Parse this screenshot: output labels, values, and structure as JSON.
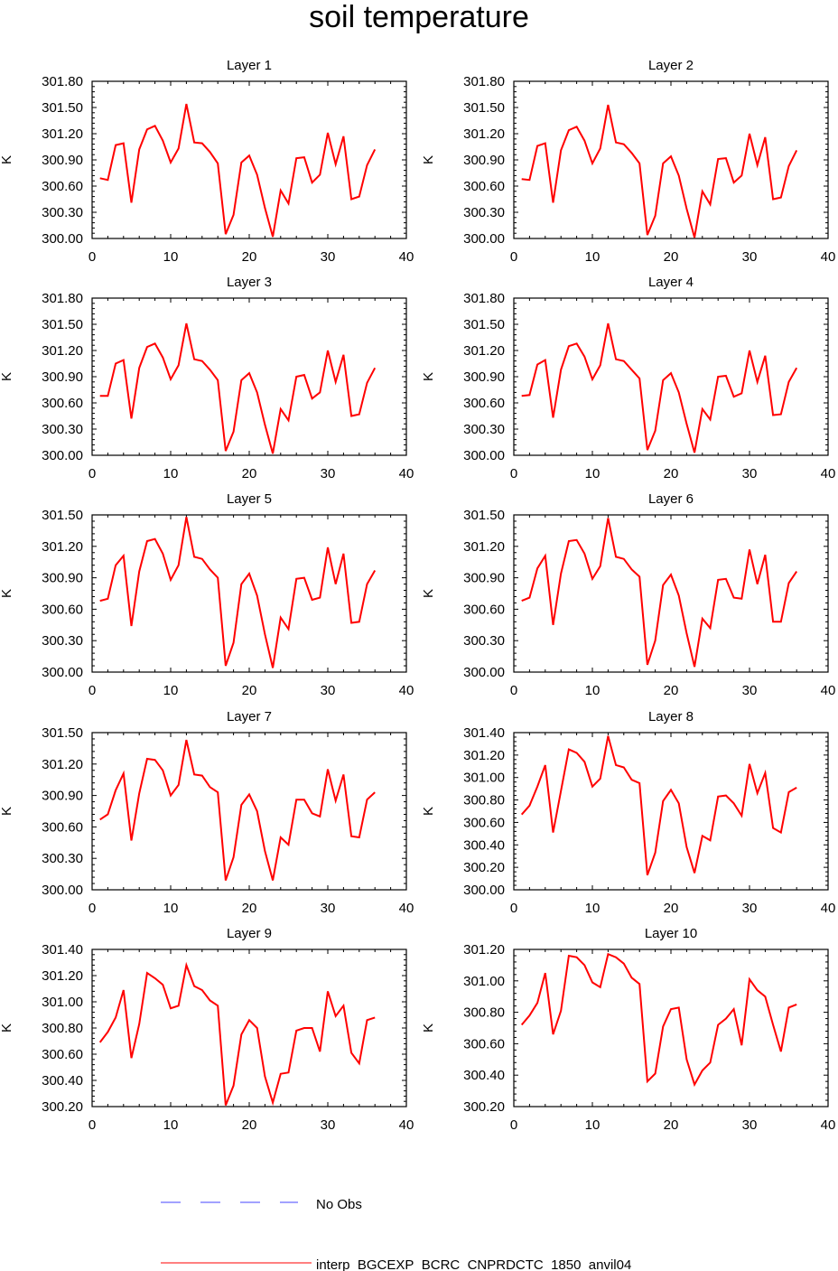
{
  "title": "soil temperature",
  "legend": [
    {
      "label": "No Obs",
      "color": "#4444ff",
      "style": "dashed"
    },
    {
      "label": "interp_BGCEXP_BCRC_CNPRDCTC_1850_anvil04",
      "color": "#ff0000",
      "style": "solid"
    }
  ],
  "chart_data": [
    {
      "type": "line",
      "title": "Layer 1",
      "ylabel": "K",
      "xlim": [
        0,
        40
      ],
      "xticks": [
        0,
        10,
        20,
        30,
        40
      ],
      "ylim": [
        300.0,
        301.8
      ],
      "yticks": [
        "300.00",
        "300.30",
        "300.60",
        "300.90",
        "301.20",
        "301.50",
        "301.80"
      ],
      "series": [
        {
          "name": "interp_BGCEXP_BCRC_CNPRDCTC_1850_anvil04",
          "x": [
            1,
            2,
            3,
            4,
            5,
            6,
            7,
            8,
            9,
            10,
            11,
            12,
            13,
            14,
            15,
            16,
            17,
            18,
            19,
            20,
            21,
            22,
            23,
            24,
            25,
            26,
            27,
            28,
            29,
            30,
            31,
            32,
            33,
            34,
            35,
            36
          ],
          "values": [
            300.69,
            300.67,
            301.07,
            301.09,
            300.41,
            301.02,
            301.25,
            301.29,
            301.12,
            300.87,
            301.03,
            301.54,
            301.1,
            301.09,
            300.99,
            300.86,
            300.05,
            300.27,
            300.87,
            300.95,
            300.73,
            300.35,
            300.02,
            300.55,
            300.4,
            300.92,
            300.93,
            300.64,
            300.73,
            301.21,
            300.85,
            301.17,
            300.45,
            300.48,
            300.84,
            301.02
          ]
        }
      ]
    },
    {
      "type": "line",
      "title": "Layer 2",
      "ylabel": "K",
      "xlim": [
        0,
        40
      ],
      "xticks": [
        0,
        10,
        20,
        30,
        40
      ],
      "ylim": [
        300.0,
        301.8
      ],
      "yticks": [
        "300.00",
        "300.30",
        "300.60",
        "300.90",
        "301.20",
        "301.50",
        "301.80"
      ],
      "series": [
        {
          "name": "interp_BGCEXP_BCRC_CNPRDCTC_1850_anvil04",
          "x": [
            1,
            2,
            3,
            4,
            5,
            6,
            7,
            8,
            9,
            10,
            11,
            12,
            13,
            14,
            15,
            16,
            17,
            18,
            19,
            20,
            21,
            22,
            23,
            24,
            25,
            26,
            27,
            28,
            29,
            30,
            31,
            32,
            33,
            34,
            35,
            36
          ],
          "values": [
            300.68,
            300.67,
            301.06,
            301.09,
            300.41,
            301.01,
            301.24,
            301.28,
            301.12,
            300.86,
            301.03,
            301.53,
            301.1,
            301.08,
            300.98,
            300.86,
            300.04,
            300.26,
            300.86,
            300.94,
            300.72,
            300.34,
            300.01,
            300.54,
            300.39,
            300.91,
            300.92,
            300.64,
            300.72,
            301.2,
            300.84,
            301.16,
            300.45,
            300.47,
            300.83,
            301.01
          ]
        }
      ]
    },
    {
      "type": "line",
      "title": "Layer 3",
      "ylabel": "K",
      "xlim": [
        0,
        40
      ],
      "xticks": [
        0,
        10,
        20,
        30,
        40
      ],
      "ylim": [
        300.0,
        301.8
      ],
      "yticks": [
        "300.00",
        "300.30",
        "300.60",
        "300.90",
        "301.20",
        "301.50",
        "301.80"
      ],
      "series": [
        {
          "name": "interp_BGCEXP_BCRC_CNPRDCTC_1850_anvil04",
          "x": [
            1,
            2,
            3,
            4,
            5,
            6,
            7,
            8,
            9,
            10,
            11,
            12,
            13,
            14,
            15,
            16,
            17,
            18,
            19,
            20,
            21,
            22,
            23,
            24,
            25,
            26,
            27,
            28,
            29,
            30,
            31,
            32,
            33,
            34,
            35,
            36
          ],
          "values": [
            300.68,
            300.68,
            301.05,
            301.09,
            300.42,
            301.0,
            301.24,
            301.28,
            301.12,
            300.87,
            301.03,
            301.51,
            301.1,
            301.08,
            300.98,
            300.86,
            300.05,
            300.27,
            300.86,
            300.94,
            300.72,
            300.35,
            300.02,
            300.53,
            300.4,
            300.9,
            300.92,
            300.65,
            300.72,
            301.2,
            300.84,
            301.15,
            300.45,
            300.47,
            300.83,
            301.0
          ]
        }
      ]
    },
    {
      "type": "line",
      "title": "Layer 4",
      "ylabel": "K",
      "xlim": [
        0,
        40
      ],
      "xticks": [
        0,
        10,
        20,
        30,
        40
      ],
      "ylim": [
        300.0,
        301.8
      ],
      "yticks": [
        "300.00",
        "300.30",
        "300.60",
        "300.90",
        "301.20",
        "301.50",
        "301.80"
      ],
      "series": [
        {
          "name": "interp_BGCEXP_BCRC_CNPRDCTC_1850_anvil04",
          "x": [
            1,
            2,
            3,
            4,
            5,
            6,
            7,
            8,
            9,
            10,
            11,
            12,
            13,
            14,
            15,
            16,
            17,
            18,
            19,
            20,
            21,
            22,
            23,
            24,
            25,
            26,
            27,
            28,
            29,
            30,
            31,
            32,
            33,
            34,
            35,
            36
          ],
          "values": [
            300.68,
            300.69,
            301.04,
            301.09,
            300.43,
            300.98,
            301.25,
            301.28,
            301.13,
            300.87,
            301.03,
            301.51,
            301.1,
            301.08,
            300.98,
            300.88,
            300.06,
            300.28,
            300.86,
            300.94,
            300.72,
            300.36,
            300.03,
            300.53,
            300.41,
            300.9,
            300.91,
            300.67,
            300.71,
            301.2,
            300.84,
            301.14,
            300.46,
            300.47,
            300.84,
            301.0
          ]
        }
      ]
    },
    {
      "type": "line",
      "title": "Layer 5",
      "ylabel": "K",
      "xlim": [
        0,
        40
      ],
      "xticks": [
        0,
        10,
        20,
        30,
        40
      ],
      "ylim": [
        300.0,
        301.5
      ],
      "yticks": [
        "300.00",
        "300.30",
        "300.60",
        "300.90",
        "301.20",
        "301.50"
      ],
      "series": [
        {
          "name": "interp_BGCEXP_BCRC_CNPRDCTC_1850_anvil04",
          "x": [
            1,
            2,
            3,
            4,
            5,
            6,
            7,
            8,
            9,
            10,
            11,
            12,
            13,
            14,
            15,
            16,
            17,
            18,
            19,
            20,
            21,
            22,
            23,
            24,
            25,
            26,
            27,
            28,
            29,
            30,
            31,
            32,
            33,
            34,
            35,
            36
          ],
          "values": [
            300.68,
            300.7,
            301.02,
            301.11,
            300.44,
            300.96,
            301.25,
            301.27,
            301.13,
            300.88,
            301.02,
            301.48,
            301.1,
            301.08,
            300.98,
            300.9,
            300.06,
            300.28,
            300.84,
            300.94,
            300.73,
            300.36,
            300.04,
            300.52,
            300.41,
            300.89,
            300.9,
            300.69,
            300.71,
            301.19,
            300.84,
            301.13,
            300.47,
            300.48,
            300.84,
            300.97
          ]
        }
      ]
    },
    {
      "type": "line",
      "title": "Layer 6",
      "ylabel": "K",
      "xlim": [
        0,
        40
      ],
      "xticks": [
        0,
        10,
        20,
        30,
        40
      ],
      "ylim": [
        300.0,
        301.5
      ],
      "yticks": [
        "300.00",
        "300.30",
        "300.60",
        "300.90",
        "301.20",
        "301.50"
      ],
      "series": [
        {
          "name": "interp_BGCEXP_BCRC_CNPRDCTC_1850_anvil04",
          "x": [
            1,
            2,
            3,
            4,
            5,
            6,
            7,
            8,
            9,
            10,
            11,
            12,
            13,
            14,
            15,
            16,
            17,
            18,
            19,
            20,
            21,
            22,
            23,
            24,
            25,
            26,
            27,
            28,
            29,
            30,
            31,
            32,
            33,
            34,
            35,
            36
          ],
          "values": [
            300.68,
            300.71,
            300.99,
            301.11,
            300.45,
            300.94,
            301.25,
            301.26,
            301.13,
            300.89,
            301.01,
            301.47,
            301.1,
            301.08,
            300.98,
            300.91,
            300.07,
            300.3,
            300.83,
            300.93,
            300.73,
            300.37,
            300.05,
            300.51,
            300.42,
            300.88,
            300.89,
            300.71,
            300.7,
            301.17,
            300.84,
            301.12,
            300.48,
            300.48,
            300.85,
            300.96
          ]
        }
      ]
    },
    {
      "type": "line",
      "title": "Layer 7",
      "ylabel": "K",
      "xlim": [
        0,
        40
      ],
      "xticks": [
        0,
        10,
        20,
        30,
        40
      ],
      "ylim": [
        300.0,
        301.5
      ],
      "yticks": [
        "300.00",
        "300.30",
        "300.60",
        "300.90",
        "301.20",
        "301.50"
      ],
      "series": [
        {
          "name": "interp_BGCEXP_BCRC_CNPRDCTC_1850_anvil04",
          "x": [
            1,
            2,
            3,
            4,
            5,
            6,
            7,
            8,
            9,
            10,
            11,
            12,
            13,
            14,
            15,
            16,
            17,
            18,
            19,
            20,
            21,
            22,
            23,
            24,
            25,
            26,
            27,
            28,
            29,
            30,
            31,
            32,
            33,
            34,
            35,
            36
          ],
          "values": [
            300.67,
            300.72,
            300.95,
            301.11,
            300.47,
            300.92,
            301.25,
            301.24,
            301.14,
            300.9,
            301.0,
            301.43,
            301.1,
            301.09,
            300.98,
            300.93,
            300.09,
            300.31,
            300.81,
            300.91,
            300.75,
            300.37,
            300.09,
            300.5,
            300.43,
            300.86,
            300.86,
            300.73,
            300.7,
            301.15,
            300.85,
            301.1,
            300.51,
            300.5,
            300.86,
            300.93
          ]
        }
      ]
    },
    {
      "type": "line",
      "title": "Layer 8",
      "ylabel": "K",
      "xlim": [
        0,
        40
      ],
      "xticks": [
        0,
        10,
        20,
        30,
        40
      ],
      "ylim": [
        300.0,
        301.4
      ],
      "yticks": [
        "300.00",
        "300.20",
        "300.40",
        "300.60",
        "300.80",
        "301.00",
        "301.20",
        "301.40"
      ],
      "series": [
        {
          "name": "interp_BGCEXP_BCRC_CNPRDCTC_1850_anvil04",
          "x": [
            1,
            2,
            3,
            4,
            5,
            6,
            7,
            8,
            9,
            10,
            11,
            12,
            13,
            14,
            15,
            16,
            17,
            18,
            19,
            20,
            21,
            22,
            23,
            24,
            25,
            26,
            27,
            28,
            29,
            30,
            31,
            32,
            33,
            34,
            35,
            36
          ],
          "values": [
            300.67,
            300.75,
            300.92,
            301.11,
            300.51,
            300.88,
            301.25,
            301.22,
            301.14,
            300.92,
            300.99,
            301.37,
            301.11,
            301.09,
            300.98,
            300.95,
            300.13,
            300.33,
            300.79,
            300.89,
            300.77,
            300.38,
            300.15,
            300.48,
            300.44,
            300.83,
            300.84,
            300.77,
            300.66,
            301.12,
            300.86,
            301.04,
            300.55,
            300.51,
            300.87,
            300.91
          ]
        }
      ]
    },
    {
      "type": "line",
      "title": "Layer 9",
      "ylabel": "K",
      "xlim": [
        0,
        40
      ],
      "xticks": [
        0,
        10,
        20,
        30,
        40
      ],
      "ylim": [
        300.2,
        301.4
      ],
      "yticks": [
        "300.20",
        "300.40",
        "300.60",
        "300.80",
        "301.00",
        "301.20",
        "301.40"
      ],
      "series": [
        {
          "name": "interp_BGCEXP_BCRC_CNPRDCTC_1850_anvil04",
          "x": [
            1,
            2,
            3,
            4,
            5,
            6,
            7,
            8,
            9,
            10,
            11,
            12,
            13,
            14,
            15,
            16,
            17,
            18,
            19,
            20,
            21,
            22,
            23,
            24,
            25,
            26,
            27,
            28,
            29,
            30,
            31,
            32,
            33,
            34,
            35,
            36
          ],
          "values": [
            300.69,
            300.77,
            300.88,
            301.09,
            300.57,
            300.83,
            301.22,
            301.18,
            301.13,
            300.95,
            300.97,
            301.28,
            301.12,
            301.09,
            301.01,
            300.97,
            300.21,
            300.36,
            300.75,
            300.86,
            300.8,
            300.43,
            300.23,
            300.45,
            300.46,
            300.78,
            300.8,
            300.8,
            300.62,
            301.08,
            300.89,
            300.97,
            300.61,
            300.53,
            300.86,
            300.88
          ]
        }
      ]
    },
    {
      "type": "line",
      "title": "Layer 10",
      "ylabel": "K",
      "xlim": [
        0,
        40
      ],
      "xticks": [
        0,
        10,
        20,
        30,
        40
      ],
      "ylim": [
        300.2,
        301.2
      ],
      "yticks": [
        "300.20",
        "300.40",
        "300.60",
        "300.80",
        "301.00",
        "301.20"
      ],
      "series": [
        {
          "name": "interp_BGCEXP_BCRC_CNPRDCTC_1850_anvil04",
          "x": [
            1,
            2,
            3,
            4,
            5,
            6,
            7,
            8,
            9,
            10,
            11,
            12,
            13,
            14,
            15,
            16,
            17,
            18,
            19,
            20,
            21,
            22,
            23,
            24,
            25,
            26,
            27,
            28,
            29,
            30,
            31,
            32,
            33,
            34,
            35,
            36
          ],
          "values": [
            300.72,
            300.78,
            300.86,
            301.05,
            300.66,
            300.81,
            301.16,
            301.15,
            301.1,
            300.99,
            300.96,
            301.17,
            301.15,
            301.11,
            301.02,
            300.98,
            300.36,
            300.41,
            300.71,
            300.82,
            300.83,
            300.5,
            300.34,
            300.43,
            300.48,
            300.72,
            300.76,
            300.82,
            300.59,
            301.01,
            300.94,
            300.9,
            300.72,
            300.55,
            300.83,
            300.85
          ]
        }
      ]
    }
  ]
}
